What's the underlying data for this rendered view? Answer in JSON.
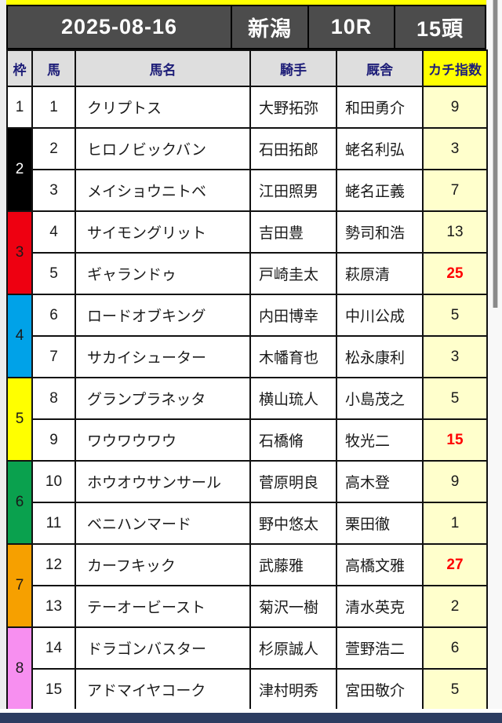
{
  "title": {
    "date": "2025-08-16",
    "track": "新潟",
    "race": "10R",
    "heads": "15頭"
  },
  "columns": {
    "waku": "枠",
    "uma": "馬",
    "name": "馬名",
    "jockey": "騎手",
    "stable": "厩舎",
    "index": "カチ指数"
  },
  "colors": {
    "top_strip": "#ffff00",
    "title_bg": "#4c4c4c",
    "header_bg": "#dedede",
    "header_text": "#1e1e78",
    "index_header_bg": "#ffff00",
    "index_cell_bg": "#ffffcc",
    "index_red": "#ff0000",
    "bottom_bar": "#2c3d61"
  },
  "frames": [
    {
      "no": "1",
      "color": "#ffffff",
      "text_color": "#1a1a1a",
      "span": 1
    },
    {
      "no": "2",
      "color": "#000000",
      "text_color": "#ffffff",
      "span": 2
    },
    {
      "no": "3",
      "color": "#ee0011",
      "text_color": "#1a1a1a",
      "span": 2
    },
    {
      "no": "4",
      "color": "#00a2e8",
      "text_color": "#1a1a1a",
      "span": 2
    },
    {
      "no": "5",
      "color": "#ffff00",
      "text_color": "#1a1a1a",
      "span": 2
    },
    {
      "no": "6",
      "color": "#0aa14e",
      "text_color": "#1a1a1a",
      "span": 2
    },
    {
      "no": "7",
      "color": "#f6a000",
      "text_color": "#1a1a1a",
      "span": 2
    },
    {
      "no": "8",
      "color": "#f78ff0",
      "text_color": "#1a1a1a",
      "span": 2
    }
  ],
  "horses": [
    {
      "num": "1",
      "frame": 1,
      "name": "クリプトス",
      "jockey": "大野拓弥",
      "stable": "和田勇介",
      "index": "9",
      "red": false
    },
    {
      "num": "2",
      "frame": 2,
      "name": "ヒロノビックバン",
      "jockey": "石田拓郎",
      "stable": "蛯名利弘",
      "index": "3",
      "red": false
    },
    {
      "num": "3",
      "frame": 2,
      "name": "メイショウニトベ",
      "jockey": "江田照男",
      "stable": "蛯名正義",
      "index": "7",
      "red": false
    },
    {
      "num": "4",
      "frame": 3,
      "name": "サイモングリット",
      "jockey": "吉田豊",
      "stable": "勢司和浩",
      "index": "13",
      "red": false
    },
    {
      "num": "5",
      "frame": 3,
      "name": "ギャランドゥ",
      "jockey": "戸崎圭太",
      "stable": "萩原清",
      "index": "25",
      "red": true
    },
    {
      "num": "6",
      "frame": 4,
      "name": "ロードオブキング",
      "jockey": "内田博幸",
      "stable": "中川公成",
      "index": "5",
      "red": false
    },
    {
      "num": "7",
      "frame": 4,
      "name": "サカイシューター",
      "jockey": "木幡育也",
      "stable": "松永康利",
      "index": "3",
      "red": false
    },
    {
      "num": "8",
      "frame": 5,
      "name": "グランプラネッタ",
      "jockey": "横山琉人",
      "stable": "小島茂之",
      "index": "5",
      "red": false
    },
    {
      "num": "9",
      "frame": 5,
      "name": "ワウワウワウ",
      "jockey": "石橋脩",
      "stable": "牧光二",
      "index": "15",
      "red": true
    },
    {
      "num": "10",
      "frame": 6,
      "name": "ホウオウサンサール",
      "jockey": "菅原明良",
      "stable": "高木登",
      "index": "9",
      "red": false
    },
    {
      "num": "11",
      "frame": 6,
      "name": "ベニハンマード",
      "jockey": "野中悠太",
      "stable": "栗田徹",
      "index": "1",
      "red": false
    },
    {
      "num": "12",
      "frame": 7,
      "name": "カーフキック",
      "jockey": "武藤雅",
      "stable": "高橋文雅",
      "index": "27",
      "red": true
    },
    {
      "num": "13",
      "frame": 7,
      "name": "テーオービースト",
      "jockey": "菊沢一樹",
      "stable": "清水英克",
      "index": "2",
      "red": false
    },
    {
      "num": "14",
      "frame": 8,
      "name": "ドラゴンバスター",
      "jockey": "杉原誠人",
      "stable": "萱野浩二",
      "index": "6",
      "red": false
    },
    {
      "num": "15",
      "frame": 8,
      "name": "アドマイヤコーク",
      "jockey": "津村明秀",
      "stable": "宮田敬介",
      "index": "5",
      "red": false
    }
  ]
}
